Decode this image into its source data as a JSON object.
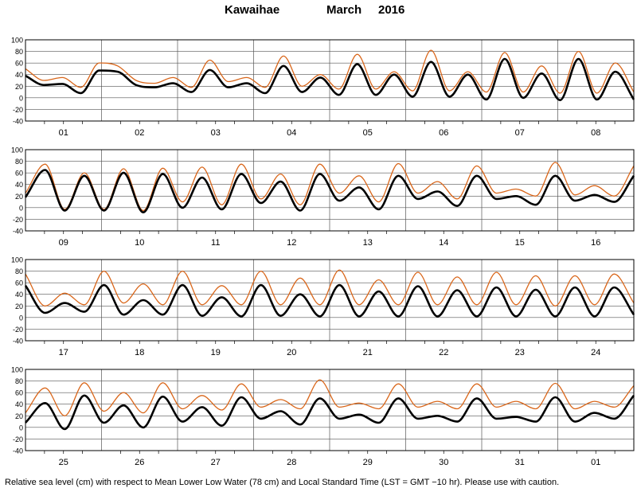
{
  "title": {
    "station": "Kawaihae",
    "month": "March",
    "year": "2016"
  },
  "footnote": "Relative sea level (cm) with respect to Mean Lower Low Water (78 cm) and Local Standard Time (LST = GMT −10 hr). Please use with caution.",
  "colors": {
    "predicted": "#000000",
    "observed": "#d9661a",
    "grid": "#555555",
    "frame": "#000000"
  },
  "chart_data": {
    "type": "line",
    "ylim": [
      -40,
      100
    ],
    "yticks": [
      -40,
      -20,
      0,
      20,
      40,
      60,
      80,
      100
    ],
    "grid": true,
    "series_info": [
      {
        "key": "predicted",
        "style": "thick black line"
      },
      {
        "key": "observed",
        "style": "thin orange line"
      }
    ],
    "panels": [
      {
        "days": [
          "01",
          "02",
          "03",
          "04",
          "05",
          "06",
          "07",
          "08"
        ],
        "predicted": [
          38,
          22,
          24,
          8,
          47,
          45,
          22,
          18,
          25,
          10,
          48,
          18,
          25,
          8,
          55,
          10,
          35,
          5,
          58,
          5,
          40,
          2,
          62,
          2,
          40,
          -3,
          67,
          0,
          42,
          -4,
          67,
          -3,
          45,
          -3
        ],
        "observed": [
          50,
          30,
          35,
          18,
          60,
          55,
          30,
          25,
          35,
          18,
          65,
          28,
          35,
          18,
          72,
          20,
          40,
          15,
          75,
          15,
          45,
          12,
          82,
          12,
          45,
          10,
          78,
          10,
          55,
          8,
          80,
          8,
          60,
          10
        ]
      },
      {
        "days": [
          "09",
          "10",
          "11",
          "12",
          "13",
          "14",
          "15",
          "16"
        ],
        "predicted": [
          18,
          65,
          -5,
          55,
          -5,
          60,
          -8,
          58,
          0,
          52,
          -3,
          58,
          8,
          45,
          -5,
          58,
          12,
          35,
          -3,
          55,
          15,
          28,
          3,
          55,
          15,
          20,
          5,
          55,
          12,
          22,
          10,
          55
        ],
        "observed": [
          25,
          75,
          -3,
          60,
          -3,
          67,
          -5,
          68,
          10,
          70,
          5,
          75,
          15,
          58,
          5,
          75,
          25,
          55,
          10,
          76,
          25,
          45,
          15,
          72,
          25,
          32,
          20,
          78,
          22,
          38,
          20,
          72
        ]
      },
      {
        "days": [
          "17",
          "18",
          "19",
          "20",
          "21",
          "22",
          "23",
          "24"
        ],
        "predicted": [
          55,
          8,
          25,
          10,
          56,
          5,
          30,
          5,
          56,
          3,
          35,
          2,
          56,
          3,
          40,
          2,
          56,
          2,
          45,
          2,
          54,
          2,
          47,
          2,
          52,
          2,
          48,
          2,
          52,
          2,
          52,
          5
        ],
        "observed": [
          75,
          20,
          42,
          22,
          80,
          25,
          58,
          22,
          80,
          22,
          55,
          22,
          80,
          22,
          68,
          22,
          82,
          22,
          65,
          22,
          78,
          22,
          70,
          22,
          78,
          22,
          72,
          20,
          72,
          22,
          75,
          25
        ]
      },
      {
        "days": [
          "25",
          "26",
          "27",
          "28",
          "29",
          "30",
          "31",
          "01"
        ],
        "predicted": [
          8,
          42,
          -3,
          55,
          8,
          38,
          0,
          53,
          10,
          35,
          3,
          52,
          15,
          28,
          5,
          50,
          15,
          22,
          8,
          50,
          15,
          20,
          10,
          50,
          15,
          18,
          10,
          52,
          10,
          25,
          15,
          55
        ],
        "observed": [
          25,
          68,
          20,
          77,
          28,
          60,
          25,
          77,
          32,
          55,
          30,
          75,
          35,
          48,
          32,
          82,
          35,
          42,
          32,
          75,
          35,
          45,
          32,
          75,
          35,
          45,
          32,
          76,
          32,
          45,
          35,
          72
        ]
      }
    ]
  }
}
